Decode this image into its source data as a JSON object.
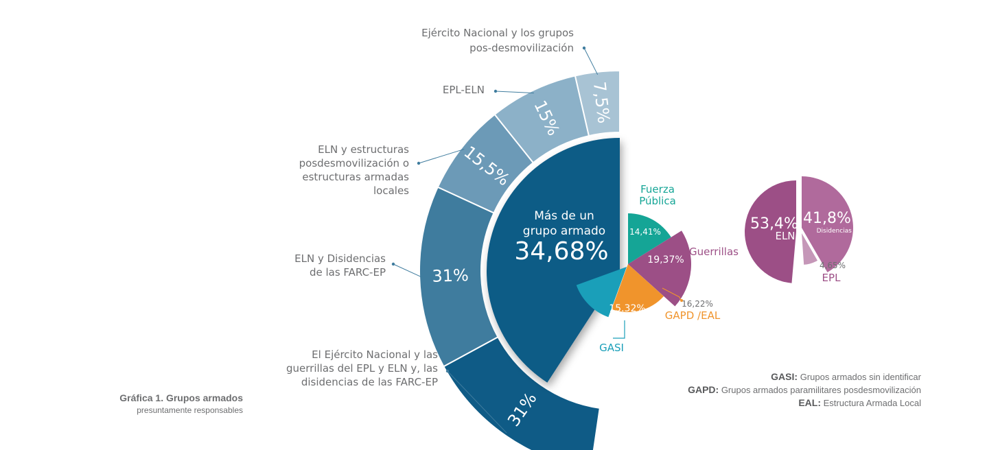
{
  "chart_data": [
    {
      "type": "pie",
      "description_role": "outer-ring",
      "slices": [
        {
          "value": 31,
          "display": "31%",
          "label": "El Ejército Nacional y las guerrillas del EPL y ELN y, las disidencias de las FARC-EP",
          "color": "#0f5b86"
        },
        {
          "value": 31,
          "display": "31%",
          "label": "ELN y Disidencias de las FARC-EP",
          "color": "#3f7c9e"
        },
        {
          "value": 15.5,
          "display": "15,5%",
          "label": "ELN y estructuras posdesmovilización o estructuras armadas locales",
          "color": "#6c9ab7"
        },
        {
          "value": 15,
          "display": "15%",
          "label": "EPL-ELN",
          "color": "#8cb1c8"
        },
        {
          "value": 7.5,
          "display": "7,5%",
          "label": "Ejército Nacional y los grupos pos-desmovilización",
          "color": "#a8c3d4"
        }
      ]
    },
    {
      "type": "pie",
      "slices": [
        {
          "value": 34.68,
          "display": "34,68%",
          "label": "Más de un grupo armado",
          "color": "#0f5b86"
        }
      ]
    },
    {
      "type": "pie",
      "slices": [
        {
          "value": 14.41,
          "display": "14,41%",
          "label": "Fuerza Pública",
          "color": "#15a596"
        },
        {
          "value": 19.37,
          "display": "19,37%",
          "label": "Guerrillas",
          "color": "#9c4f86"
        },
        {
          "value": 16.22,
          "display": "16,22%",
          "label": "GAPD /EAL",
          "color": "#f0942c"
        },
        {
          "value": 15.32,
          "display": "15.32%",
          "label": "GASI",
          "color": "#1a9fb9"
        }
      ]
    },
    {
      "type": "pie",
      "slices": [
        {
          "value": 53.4,
          "display": "53,4%",
          "label": "ELN",
          "color": "#9c4f86"
        },
        {
          "value": 41.8,
          "display": "41,8%",
          "label": "Disidencias de las FARC-EP",
          "color": "#b06a9c"
        },
        {
          "value": 4.65,
          "display": "4,65%",
          "label": "EPL",
          "color": "#c597b8"
        }
      ]
    }
  ],
  "labels": {
    "outer": {
      "s0": [
        "El Ejército Nacional y las",
        "guerrillas del EPL y ELN y, las",
        "disidencias de las FARC-EP"
      ],
      "s1": [
        "ELN y Disidencias",
        "de las FARC-EP"
      ],
      "s2": [
        "ELN y estructuras",
        "posdesmovilización o",
        "estructuras armadas",
        "locales"
      ],
      "s3": [
        "EPL-ELN"
      ],
      "s4": [
        "Ejército Nacional y los grupos",
        "pos-desmovilización"
      ]
    },
    "inner": [
      "Más de un",
      "grupo armado"
    ],
    "small": {
      "fuerza": [
        "Fuerza",
        "Pública"
      ],
      "guerrillas": "Guerrillas",
      "gapd": "GAPD /EAL",
      "gasi": "GASI"
    }
  },
  "caption": {
    "title": "Gráfica 1. Grupos armados",
    "subtitle": "presuntamente responsables"
  },
  "glossary": [
    {
      "abbr": "GASI:",
      "text": "Grupos armados sin identificar"
    },
    {
      "abbr": "GAPD:",
      "text": "Grupos armados paramilitares posdesmovilización"
    },
    {
      "abbr": "EAL:",
      "text": "Estructura Armada Local"
    }
  ]
}
